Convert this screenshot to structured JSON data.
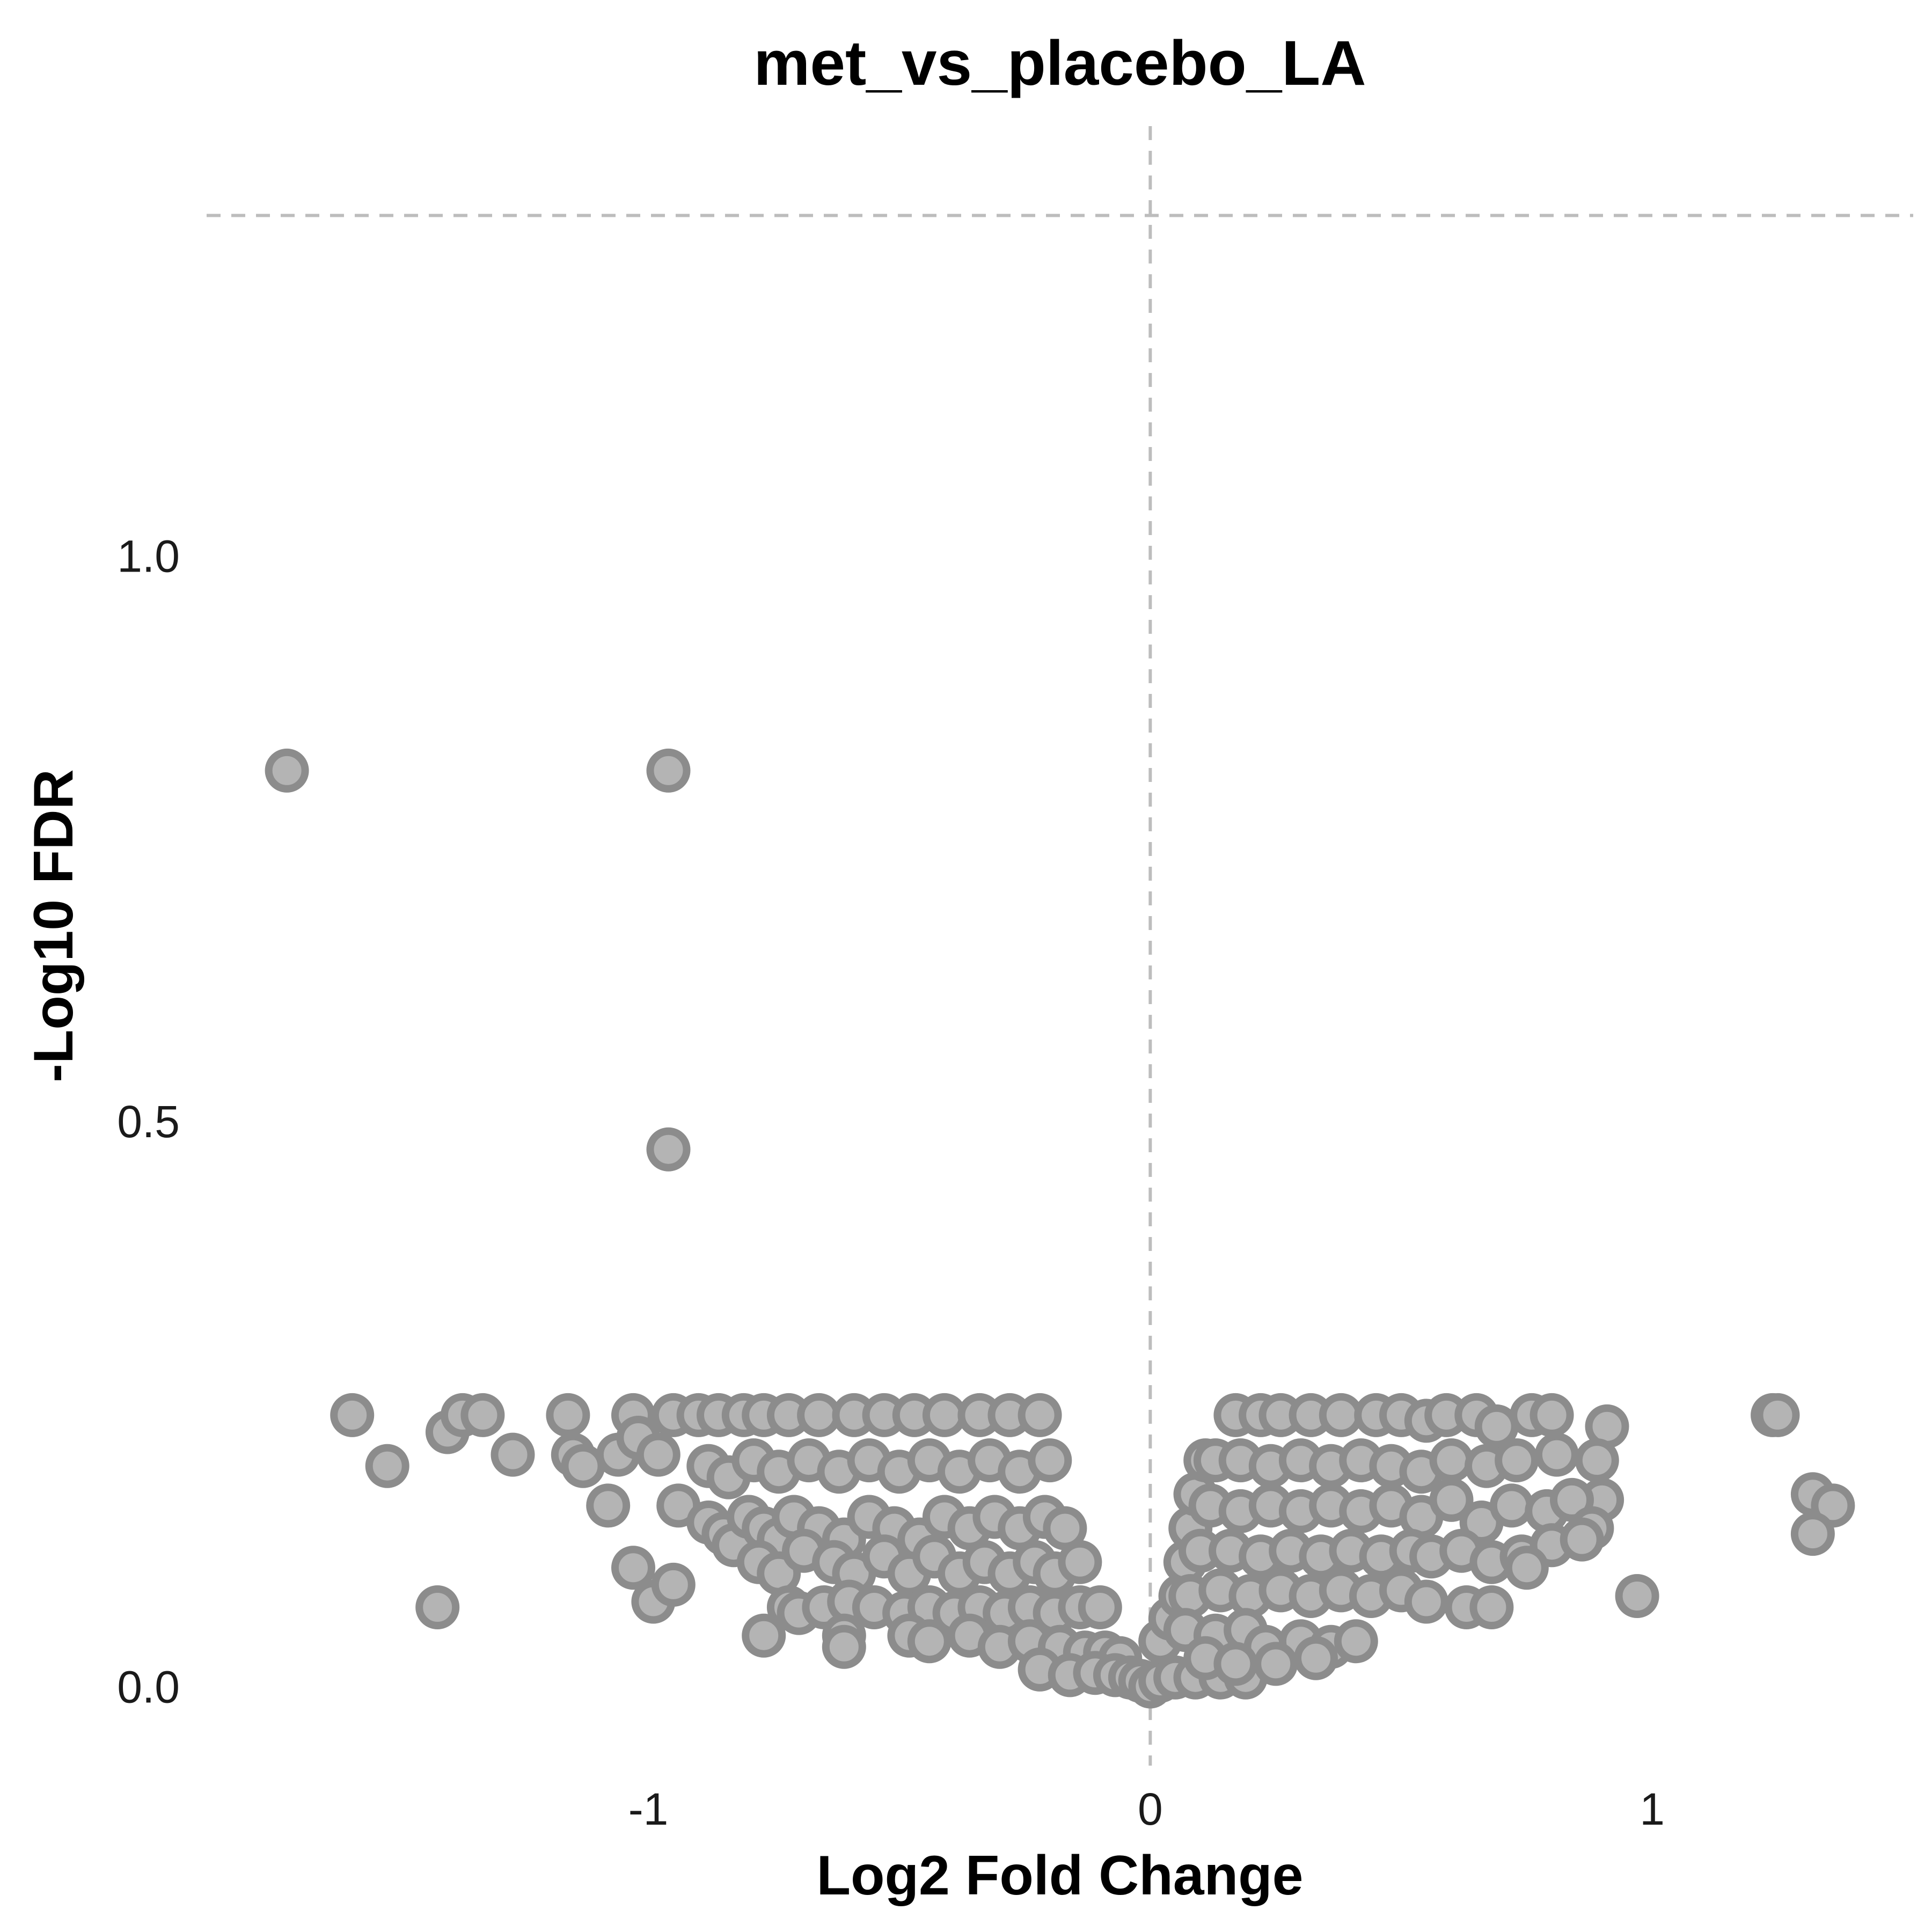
{
  "chart_data": {
    "type": "scatter",
    "title": "met_vs_placebo_LA",
    "xlabel": "Log2 Fold Change",
    "ylabel": "-Log10 FDR",
    "xlim": [
      -1.88,
      1.52
    ],
    "ylim": [
      -0.07,
      1.38
    ],
    "xticks": [
      -1,
      0,
      1
    ],
    "xtick_labels": [
      "-1",
      "0",
      "1"
    ],
    "yticks": [
      0.0,
      0.5,
      1.0
    ],
    "ytick_labels": [
      "0.0",
      "0.5",
      "1.0"
    ],
    "reference_lines": {
      "vertical_x": 0,
      "horizontal_y": 1.301
    },
    "grid": false,
    "legend": "none",
    "colors": {
      "point_fill": "#b4b4b4",
      "point_stroke": "#8c8c8c",
      "reference_line": "#bdbdbd"
    },
    "points": [
      [
        -1.72,
        0.81
      ],
      [
        -0.96,
        0.81
      ],
      [
        -0.96,
        0.475
      ],
      [
        -1.59,
        0.24
      ],
      [
        -1.52,
        0.195
      ],
      [
        -1.4,
        0.225
      ],
      [
        -1.37,
        0.24
      ],
      [
        -1.33,
        0.24
      ],
      [
        -1.27,
        0.205
      ],
      [
        -1.42,
        0.07
      ],
      [
        -1.16,
        0.24
      ],
      [
        -1.15,
        0.205
      ],
      [
        -1.13,
        0.195
      ],
      [
        -1.08,
        0.16
      ],
      [
        -1.06,
        0.205
      ],
      [
        -1.03,
        0.24
      ],
      [
        -1.02,
        0.22
      ],
      [
        -1.03,
        0.105
      ],
      [
        -0.99,
        0.075
      ],
      [
        -0.95,
        0.09
      ],
      [
        -0.94,
        0.16
      ],
      [
        -0.98,
        0.205
      ],
      [
        -0.95,
        0.24
      ],
      [
        -0.9,
        0.24
      ],
      [
        -0.86,
        0.24
      ],
      [
        -0.81,
        0.24
      ],
      [
        -0.77,
        0.24
      ],
      [
        -0.72,
        0.24
      ],
      [
        -0.66,
        0.24
      ],
      [
        -0.59,
        0.24
      ],
      [
        -0.53,
        0.24
      ],
      [
        -0.47,
        0.24
      ],
      [
        -0.41,
        0.24
      ],
      [
        -0.34,
        0.24
      ],
      [
        -0.28,
        0.24
      ],
      [
        -0.22,
        0.24
      ],
      [
        -0.88,
        0.195
      ],
      [
        -0.84,
        0.185
      ],
      [
        -0.79,
        0.2
      ],
      [
        -0.74,
        0.19
      ],
      [
        -0.68,
        0.2
      ],
      [
        -0.62,
        0.19
      ],
      [
        -0.56,
        0.2
      ],
      [
        -0.5,
        0.19
      ],
      [
        -0.44,
        0.2
      ],
      [
        -0.38,
        0.19
      ],
      [
        -0.32,
        0.2
      ],
      [
        -0.26,
        0.19
      ],
      [
        -0.2,
        0.2
      ],
      [
        -0.88,
        0.145
      ],
      [
        -0.85,
        0.135
      ],
      [
        -0.83,
        0.125
      ],
      [
        -0.8,
        0.15
      ],
      [
        -0.77,
        0.14
      ],
      [
        -0.74,
        0.13
      ],
      [
        -0.71,
        0.15
      ],
      [
        -0.66,
        0.14
      ],
      [
        -0.61,
        0.13
      ],
      [
        -0.56,
        0.15
      ],
      [
        -0.51,
        0.14
      ],
      [
        -0.46,
        0.13
      ],
      [
        -0.41,
        0.15
      ],
      [
        -0.36,
        0.14
      ],
      [
        -0.31,
        0.15
      ],
      [
        -0.26,
        0.14
      ],
      [
        -0.21,
        0.15
      ],
      [
        -0.17,
        0.14
      ],
      [
        -0.78,
        0.11
      ],
      [
        -0.74,
        0.1
      ],
      [
        -0.69,
        0.12
      ],
      [
        -0.63,
        0.11
      ],
      [
        -0.59,
        0.1
      ],
      [
        -0.53,
        0.115
      ],
      [
        -0.48,
        0.1
      ],
      [
        -0.43,
        0.115
      ],
      [
        -0.38,
        0.1
      ],
      [
        -0.33,
        0.11
      ],
      [
        -0.28,
        0.1
      ],
      [
        -0.23,
        0.11
      ],
      [
        -0.19,
        0.1
      ],
      [
        -0.14,
        0.11
      ],
      [
        -0.72,
        0.07
      ],
      [
        -0.7,
        0.065
      ],
      [
        -0.65,
        0.07
      ],
      [
        -0.6,
        0.075
      ],
      [
        -0.55,
        0.07
      ],
      [
        -0.49,
        0.065
      ],
      [
        -0.44,
        0.07
      ],
      [
        -0.39,
        0.065
      ],
      [
        -0.34,
        0.07
      ],
      [
        -0.29,
        0.065
      ],
      [
        -0.24,
        0.07
      ],
      [
        -0.19,
        0.065
      ],
      [
        -0.14,
        0.07
      ],
      [
        -0.1,
        0.07
      ],
      [
        -0.77,
        0.045
      ],
      [
        -0.61,
        0.045
      ],
      [
        -0.61,
        0.035
      ],
      [
        -0.48,
        0.045
      ],
      [
        -0.44,
        0.04
      ],
      [
        -0.36,
        0.045
      ],
      [
        -0.3,
        0.035
      ],
      [
        -0.24,
        0.04
      ],
      [
        -0.18,
        0.035
      ],
      [
        -0.13,
        0.03
      ],
      [
        -0.09,
        0.03
      ],
      [
        -0.06,
        0.025
      ],
      [
        -0.22,
        0.015
      ],
      [
        -0.16,
        0.01
      ],
      [
        -0.11,
        0.012
      ],
      [
        -0.07,
        0.01
      ],
      [
        -0.04,
        0.008
      ],
      [
        -0.02,
        0.005
      ],
      [
        0.0,
        0.0
      ],
      [
        0.02,
        0.005
      ],
      [
        0.05,
        0.008
      ],
      [
        0.09,
        0.008
      ],
      [
        0.14,
        0.008
      ],
      [
        0.19,
        0.008
      ],
      [
        0.02,
        0.04
      ],
      [
        0.04,
        0.06
      ],
      [
        0.06,
        0.08
      ],
      [
        0.07,
        0.11
      ],
      [
        0.08,
        0.14
      ],
      [
        0.09,
        0.17
      ],
      [
        0.11,
        0.2
      ],
      [
        0.17,
        0.24
      ],
      [
        0.22,
        0.24
      ],
      [
        0.26,
        0.24
      ],
      [
        0.32,
        0.24
      ],
      [
        0.38,
        0.24
      ],
      [
        0.45,
        0.24
      ],
      [
        0.5,
        0.24
      ],
      [
        0.55,
        0.235
      ],
      [
        0.59,
        0.24
      ],
      [
        0.65,
        0.24
      ],
      [
        0.69,
        0.23
      ],
      [
        0.76,
        0.24
      ],
      [
        0.8,
        0.24
      ],
      [
        0.91,
        0.23
      ],
      [
        0.13,
        0.2
      ],
      [
        0.18,
        0.2
      ],
      [
        0.24,
        0.195
      ],
      [
        0.3,
        0.2
      ],
      [
        0.36,
        0.195
      ],
      [
        0.42,
        0.2
      ],
      [
        0.48,
        0.195
      ],
      [
        0.54,
        0.19
      ],
      [
        0.6,
        0.2
      ],
      [
        0.67,
        0.195
      ],
      [
        0.73,
        0.2
      ],
      [
        0.81,
        0.205
      ],
      [
        0.89,
        0.2
      ],
      [
        0.9,
        0.165
      ],
      [
        0.12,
        0.16
      ],
      [
        0.18,
        0.155
      ],
      [
        0.24,
        0.16
      ],
      [
        0.3,
        0.155
      ],
      [
        0.36,
        0.16
      ],
      [
        0.42,
        0.155
      ],
      [
        0.48,
        0.16
      ],
      [
        0.54,
        0.15
      ],
      [
        0.6,
        0.165
      ],
      [
        0.66,
        0.145
      ],
      [
        0.72,
        0.16
      ],
      [
        0.79,
        0.155
      ],
      [
        0.84,
        0.165
      ],
      [
        0.88,
        0.14
      ],
      [
        0.1,
        0.12
      ],
      [
        0.16,
        0.12
      ],
      [
        0.22,
        0.115
      ],
      [
        0.28,
        0.12
      ],
      [
        0.34,
        0.115
      ],
      [
        0.4,
        0.12
      ],
      [
        0.46,
        0.115
      ],
      [
        0.52,
        0.12
      ],
      [
        0.56,
        0.115
      ],
      [
        0.62,
        0.12
      ],
      [
        0.68,
        0.11
      ],
      [
        0.74,
        0.115
      ],
      [
        0.8,
        0.125
      ],
      [
        0.86,
        0.13
      ],
      [
        0.08,
        0.08
      ],
      [
        0.14,
        0.085
      ],
      [
        0.2,
        0.08
      ],
      [
        0.26,
        0.085
      ],
      [
        0.32,
        0.08
      ],
      [
        0.38,
        0.085
      ],
      [
        0.44,
        0.08
      ],
      [
        0.5,
        0.085
      ],
      [
        0.55,
        0.075
      ],
      [
        0.63,
        0.07
      ],
      [
        0.68,
        0.07
      ],
      [
        0.75,
        0.105
      ],
      [
        0.97,
        0.08
      ],
      [
        0.07,
        0.05
      ],
      [
        0.13,
        0.045
      ],
      [
        0.19,
        0.05
      ],
      [
        0.23,
        0.035
      ],
      [
        0.3,
        0.04
      ],
      [
        0.36,
        0.035
      ],
      [
        0.41,
        0.04
      ],
      [
        0.11,
        0.025
      ],
      [
        0.17,
        0.02
      ],
      [
        0.25,
        0.02
      ],
      [
        0.33,
        0.025
      ],
      [
        1.24,
        0.24
      ],
      [
        1.25,
        0.24
      ],
      [
        1.32,
        0.17
      ],
      [
        1.36,
        0.16
      ],
      [
        1.32,
        0.135
      ]
    ]
  }
}
